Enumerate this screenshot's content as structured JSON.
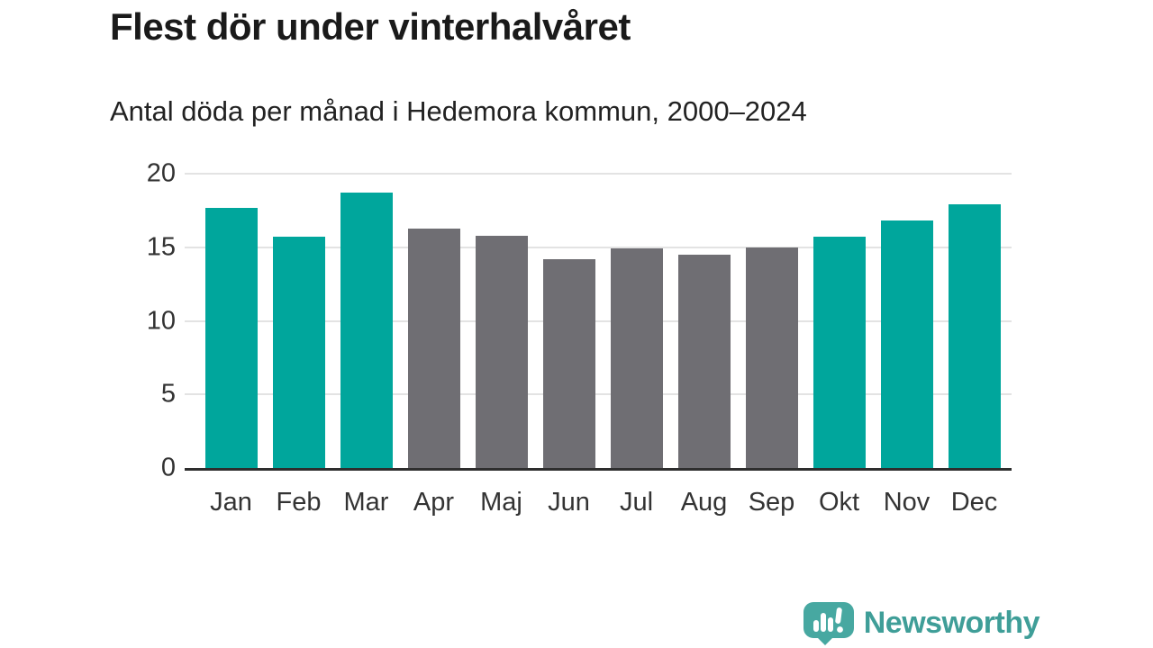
{
  "header": {
    "title": "Flest dör under vinterhalvåret",
    "subtitle": "Antal döda per månad i Hedemora kommun, 2000–2024"
  },
  "chart_data": {
    "type": "bar",
    "title": "Flest dör under vinterhalvåret",
    "subtitle": "Antal döda per månad i Hedemora kommun, 2000–2024",
    "categories": [
      "Jan",
      "Feb",
      "Mar",
      "Apr",
      "Maj",
      "Jun",
      "Jul",
      "Aug",
      "Sep",
      "Okt",
      "Nov",
      "Dec"
    ],
    "values": [
      17.7,
      15.7,
      18.7,
      16.3,
      15.8,
      14.2,
      14.9,
      14.5,
      15.0,
      15.7,
      16.8,
      17.9
    ],
    "highlighted": [
      true,
      true,
      true,
      false,
      false,
      false,
      false,
      false,
      false,
      true,
      true,
      true
    ],
    "xlabel": "",
    "ylabel": "",
    "ylim": [
      0,
      20
    ],
    "yticks": [
      0,
      5,
      10,
      15,
      20
    ],
    "grid": true,
    "legend_position": "none",
    "colors": {
      "highlight": "#00a69c",
      "base": "#6f6e73",
      "axis_line": "#2e2e2e",
      "gridline": "#e3e3e3",
      "tick_text": "#333333"
    }
  },
  "footer": {
    "brand": "Newsworthy",
    "brand_color": "#3f9e98",
    "logo_bubble_color": "#47a8a1"
  }
}
